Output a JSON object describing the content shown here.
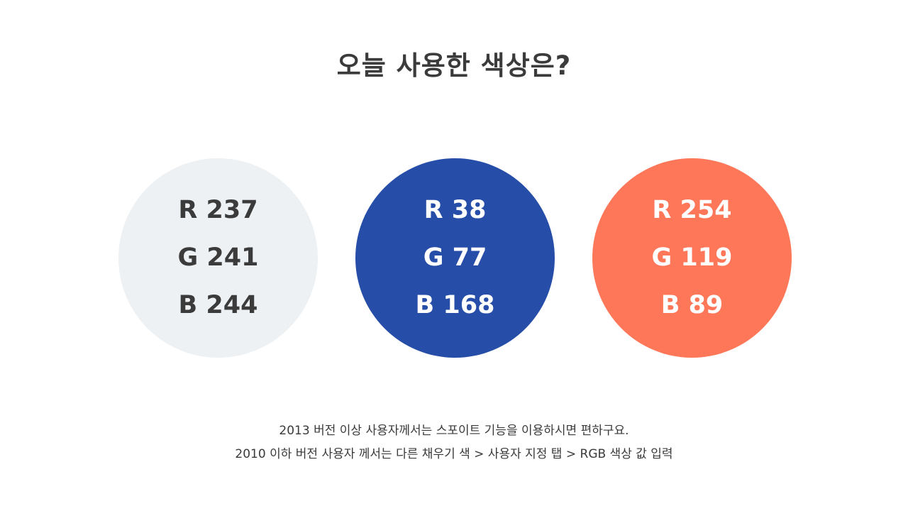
{
  "title": "오늘 사용한 색상은?",
  "swatches": [
    {
      "background": "#EDF1F4",
      "text_color": "#3B3B3B",
      "r_label": "R 237",
      "g_label": "G 241",
      "b_label": "B 244"
    },
    {
      "background": "#264DA8",
      "text_color": "#FFFFFF",
      "r_label": "R 38",
      "g_label": "G 77",
      "b_label": "B 168"
    },
    {
      "background": "#FE7759",
      "text_color": "#FFFFFF",
      "r_label": "R 254",
      "g_label": "G 119",
      "b_label": "B 89"
    }
  ],
  "notes": {
    "line1": "2013 버전 이상 사용자께서는 스포이트 기능을 이용하시면 편하구요.",
    "line2": "2010 이하 버전 사용자 께서는 다른 채우기 색 > 사용자 지정 탭 > RGB 색상 값 입력"
  }
}
